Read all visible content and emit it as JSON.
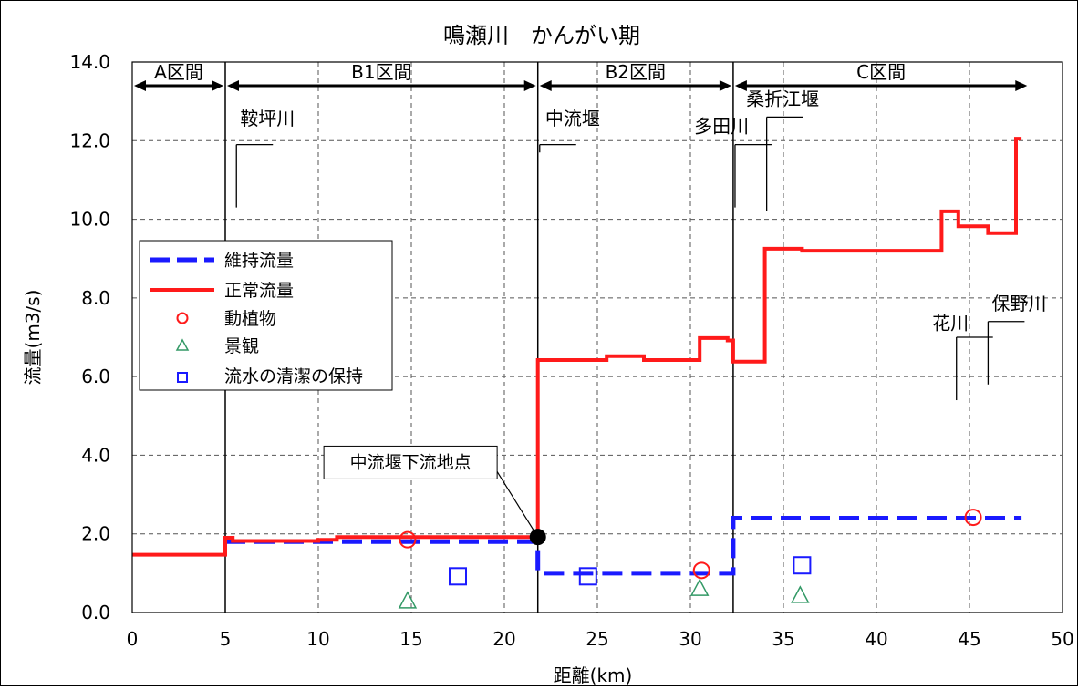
{
  "chart_data": {
    "type": "line",
    "title": "鳴瀬川　かんがい期",
    "xlabel": "距離(km)",
    "ylabel": "流量(m3/s)",
    "xlim": [
      0,
      50
    ],
    "ylim": [
      0,
      14
    ],
    "x_ticks": [
      "0",
      "5",
      "10",
      "15",
      "20",
      "25",
      "30",
      "35",
      "40",
      "45",
      "50"
    ],
    "y_ticks": [
      "0.0",
      "2.0",
      "4.0",
      "6.0",
      "8.0",
      "10.0",
      "12.0",
      "14.0"
    ],
    "grid": true,
    "legend_position": "left",
    "sections": [
      {
        "label": "A区間",
        "x_start": 0,
        "x_end": 5.0
      },
      {
        "label": "B1区間",
        "x_start": 5.0,
        "x_end": 21.8
      },
      {
        "label": "B2区間",
        "x_start": 21.8,
        "x_end": 32.3
      },
      {
        "label": "C区間",
        "x_start": 32.3,
        "x_end": 48.2
      }
    ],
    "section_boundaries": [
      5.0,
      21.8,
      32.3
    ],
    "series": [
      {
        "name": "維持流量",
        "style": "dashed",
        "color": "#1a1aff",
        "points": [
          [
            5.0,
            1.8
          ],
          [
            21.8,
            1.8
          ],
          [
            21.8,
            1.0
          ],
          [
            32.3,
            1.0
          ],
          [
            32.3,
            2.4
          ],
          [
            47.8,
            2.4
          ]
        ]
      },
      {
        "name": "正常流量",
        "style": "solid",
        "color": "#ff1a1a",
        "points": [
          [
            0,
            1.47
          ],
          [
            5.0,
            1.47
          ],
          [
            5.0,
            1.9
          ],
          [
            5.4,
            1.9
          ],
          [
            5.4,
            1.82
          ],
          [
            10.0,
            1.82
          ],
          [
            10.0,
            1.85
          ],
          [
            11.0,
            1.85
          ],
          [
            11.0,
            1.92
          ],
          [
            21.8,
            1.92
          ],
          [
            21.8,
            6.42
          ],
          [
            25.5,
            6.42
          ],
          [
            25.5,
            6.52
          ],
          [
            27.5,
            6.52
          ],
          [
            27.5,
            6.42
          ],
          [
            30.5,
            6.42
          ],
          [
            30.5,
            6.98
          ],
          [
            32.0,
            6.98
          ],
          [
            32.0,
            6.92
          ],
          [
            32.3,
            6.92
          ],
          [
            32.3,
            6.38
          ],
          [
            34.0,
            6.38
          ],
          [
            34.0,
            9.25
          ],
          [
            36.0,
            9.25
          ],
          [
            36.0,
            9.2
          ],
          [
            43.5,
            9.2
          ],
          [
            43.5,
            10.2
          ],
          [
            44.4,
            10.2
          ],
          [
            44.4,
            9.82
          ],
          [
            46.0,
            9.82
          ],
          [
            46.0,
            9.65
          ],
          [
            47.5,
            9.65
          ],
          [
            47.5,
            12.05
          ],
          [
            47.8,
            12.05
          ]
        ]
      },
      {
        "name": "動植物",
        "marker": "circle",
        "color": "#ff1a1a",
        "points": [
          [
            14.8,
            1.85
          ],
          [
            30.6,
            1.07
          ],
          [
            45.2,
            2.42
          ]
        ]
      },
      {
        "name": "景観",
        "marker": "triangle",
        "color": "#339966",
        "points": [
          [
            14.8,
            0.28
          ],
          [
            30.5,
            0.6
          ],
          [
            35.9,
            0.42
          ]
        ]
      },
      {
        "name": "流水の清潔の保持",
        "marker": "square",
        "color": "#1a1aff",
        "points": [
          [
            17.5,
            0.92
          ],
          [
            24.5,
            0.92
          ],
          [
            36.0,
            1.2
          ]
        ]
      }
    ],
    "highlight_point": {
      "x": 21.8,
      "y": 1.92,
      "label": "中流堰下流地点",
      "box_x": 10.3,
      "box_y": 4.0
    },
    "tributaries": [
      {
        "label": "鞍坪川",
        "x": 5.6,
        "y_top": 11.9,
        "y_bottom": 10.3,
        "label_x": 5.8,
        "label_y": 12.4
      },
      {
        "label": "中流堰",
        "x": 21.9,
        "y_top": 11.9,
        "y_bottom": 11.7,
        "label_x": 22.2,
        "label_y": 12.4
      },
      {
        "label": "多田川",
        "x": 32.4,
        "y_top": 11.9,
        "y_bottom": 10.3,
        "label_x": 30.2,
        "label_y": 12.2
      },
      {
        "label": "桑折江堰",
        "x": 34.1,
        "y_top": 12.6,
        "y_bottom": 10.2,
        "label_x": 33.0,
        "label_y": 12.9
      },
      {
        "label": "花川",
        "x": 44.3,
        "y_top": 7.0,
        "y_bottom": 5.4,
        "label_x": 43.0,
        "label_y": 7.2
      },
      {
        "label": "保野川",
        "x": 46.0,
        "y_top": 7.4,
        "y_bottom": 5.8,
        "label_x": 46.2,
        "label_y": 7.7
      }
    ]
  }
}
